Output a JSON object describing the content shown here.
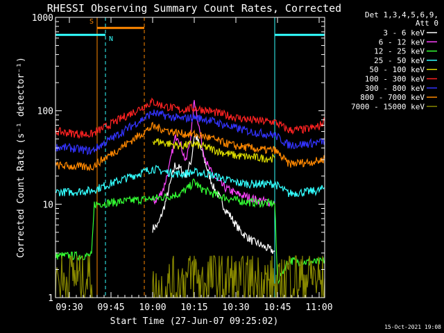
{
  "chart_data": {
    "type": "line",
    "title": "RHESSI Observing Summary Count Rates, Corrected",
    "xlabel": "Start Time (27-Jun-07 09:25:02)",
    "ylabel": "Corrected Count Rate (s⁻¹ detector⁻¹)",
    "x_units": "minutes since 09:25:02",
    "xlim": [
      0,
      97
    ],
    "ylim": [
      1,
      1000
    ],
    "y_scale": "log",
    "x_ticks": [
      {
        "t": 5,
        "label": "09:30"
      },
      {
        "t": 20,
        "label": "09:45"
      },
      {
        "t": 35,
        "label": "10:00"
      },
      {
        "t": 50,
        "label": "10:15"
      },
      {
        "t": 65,
        "label": "10:30"
      },
      {
        "t": 80,
        "label": "10:45"
      },
      {
        "t": 95,
        "label": "11:00"
      }
    ],
    "y_ticks": [
      {
        "v": 1,
        "label": "1"
      },
      {
        "v": 10,
        "label": "10"
      },
      {
        "v": 100,
        "label": "100"
      },
      {
        "v": 1000,
        "label": "1000"
      }
    ],
    "footer_date": "15-Oct-2021 19:08",
    "legend_header": [
      "Det 1,3,4,5,6,9,",
      "Att 0"
    ],
    "legend_position": "top-right",
    "series": [
      {
        "name": "3 - 6 keV",
        "color": "#ffffff",
        "x": [
          35,
          37,
          39,
          41,
          43,
          45,
          47,
          49,
          50,
          51,
          53,
          55,
          57,
          59,
          61,
          63,
          65,
          67,
          69,
          71,
          73,
          75,
          77,
          79
        ],
        "y": [
          5.5,
          6,
          9,
          15,
          26,
          24,
          20,
          30,
          55,
          50,
          35,
          22,
          15,
          12,
          9,
          7.5,
          6,
          5,
          4.5,
          4,
          3.8,
          3.5,
          3.3,
          3.1
        ]
      },
      {
        "name": "6 - 12 keV",
        "color": "#ff44ff",
        "x": [
          35,
          37,
          39,
          41,
          43,
          44,
          45,
          47,
          49,
          50,
          51,
          53,
          55,
          57,
          59,
          61,
          63,
          65,
          67,
          69,
          71,
          73,
          75,
          77,
          79
        ],
        "y": [
          10.5,
          11.5,
          15,
          25,
          50,
          55,
          45,
          28,
          60,
          130,
          90,
          40,
          25,
          20,
          17,
          15,
          14,
          13,
          12.5,
          12,
          11.5,
          11,
          10.8,
          10.5,
          10.3
        ]
      },
      {
        "name": "12 - 25 keV",
        "color": "#33ff33",
        "x": [
          0,
          13,
          14,
          35,
          40,
          45,
          48,
          50,
          52,
          55,
          60,
          65,
          70,
          75,
          79,
          80,
          84,
          90,
          95,
          97
        ],
        "y": [
          2.8,
          2.8,
          10,
          11.5,
          12,
          13,
          15,
          17.5,
          15,
          13.5,
          12,
          11,
          10.5,
          10.3,
          10.2,
          1.5,
          2.5,
          2.4,
          2.4,
          2.5
        ]
      },
      {
        "name": "25 - 50 keV",
        "color": "#33ffff",
        "x": [
          0,
          5,
          13,
          35,
          40,
          45,
          50,
          55,
          60,
          65,
          70,
          75,
          79,
          84,
          90,
          95,
          97
        ],
        "y": [
          13.5,
          13.5,
          14,
          24,
          22,
          21,
          22,
          21,
          19,
          17,
          16.5,
          16.5,
          16.5,
          13,
          13.5,
          14,
          15
        ]
      },
      {
        "name": "50 - 100 keV",
        "color": "#dddd00",
        "x": [
          35,
          40,
          45,
          50,
          55,
          60,
          65,
          70,
          75,
          79
        ],
        "y": [
          48,
          45,
          42,
          44,
          40,
          36,
          33,
          32,
          31,
          31
        ]
      },
      {
        "name": "100 - 300 keV",
        "color": "#ff2222",
        "x": [
          0,
          5,
          10,
          13,
          35,
          38,
          45,
          50,
          55,
          60,
          65,
          70,
          75,
          79,
          84,
          90,
          95,
          97
        ],
        "y": [
          60,
          58,
          56,
          56,
          125,
          115,
          102,
          107,
          100,
          92,
          85,
          80,
          77,
          76,
          62,
          63,
          68,
          78
        ]
      },
      {
        "name": "300 - 800 keV",
        "color": "#3333ff",
        "x": [
          0,
          5,
          10,
          13,
          35,
          40,
          45,
          50,
          55,
          60,
          65,
          70,
          75,
          79,
          84,
          90,
          95,
          97
        ],
        "y": [
          41,
          40,
          38,
          37,
          95,
          88,
          82,
          85,
          80,
          72,
          65,
          60,
          57,
          55,
          43,
          44,
          46,
          47
        ]
      },
      {
        "name": "800 - 7000 keV",
        "color": "#ff8800",
        "x": [
          0,
          5,
          10,
          13,
          35,
          40,
          45,
          50,
          55,
          60,
          65,
          70,
          75,
          79,
          84,
          90,
          95,
          97
        ],
        "y": [
          26,
          25.5,
          25,
          25,
          68,
          62,
          57,
          56,
          52,
          46,
          42,
          40,
          38,
          38,
          27,
          28,
          29,
          31
        ]
      },
      {
        "name": "7000 - 15000 keV",
        "color": "#888800",
        "x": [
          0,
          3,
          6,
          9,
          12,
          13,
          14,
          35,
          47,
          50,
          53,
          56,
          60,
          63,
          66,
          70,
          75,
          79,
          80,
          84,
          88,
          92,
          96,
          97
        ],
        "y": [
          1.8,
          1.4,
          1.9,
          1.5,
          1.8,
          1.6,
          1,
          1,
          1.5,
          1.8,
          1.3,
          1.7,
          1.4,
          1.6,
          1.2,
          1.5,
          1.4,
          1.3,
          1,
          1.9,
          1.5,
          1.8,
          1.4,
          1.6
        ]
      }
    ],
    "markers": [
      {
        "kind": "attenuator",
        "color": "#33ffff",
        "segments": [
          {
            "x0": 0,
            "x1": 18,
            "y": 650
          },
          {
            "x0": 79,
            "x1": 97,
            "y": 650
          }
        ]
      },
      {
        "kind": "saa",
        "color": "#ff8800",
        "segments": [
          {
            "x0": 15,
            "x1": 32,
            "y": 770
          }
        ]
      }
    ],
    "vlines": [
      {
        "x": 0,
        "color": "#33ffff",
        "dashed": false
      },
      {
        "x": 15,
        "color": "#ff8800",
        "dashed": false
      },
      {
        "x": 18,
        "color": "#33ffff",
        "dashed": true
      },
      {
        "x": 32,
        "color": "#ff8800",
        "dashed": true
      },
      {
        "x": 79,
        "color": "#33ffff",
        "dashed": false
      },
      {
        "x": 97,
        "color": "#33ffff",
        "dashed": true
      }
    ],
    "marker_labels": [
      {
        "text": "S",
        "x": 13,
        "y": 860,
        "color": "#ff8800"
      },
      {
        "text": "N",
        "x": 20,
        "y": 560,
        "color": "#33ffff"
      }
    ]
  }
}
